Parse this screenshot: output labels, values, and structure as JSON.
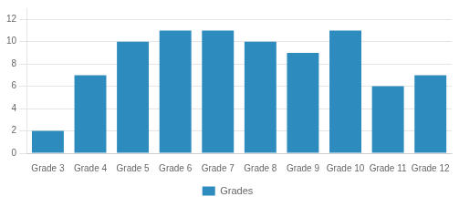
{
  "chart_data": {
    "type": "bar",
    "categories": [
      "Grade 3",
      "Grade 4",
      "Grade 5",
      "Grade 6",
      "Grade 7",
      "Grade 8",
      "Grade 9",
      "Grade 10",
      "Grade 11",
      "Grade 12"
    ],
    "series": [
      {
        "name": "Grades",
        "color": "#2E8BBE",
        "values": [
          2,
          7,
          10,
          11,
          11,
          10,
          9,
          11,
          6,
          7
        ]
      }
    ],
    "ylim": [
      0,
      13
    ],
    "yticks": [
      0,
      2,
      4,
      6,
      8,
      10,
      12
    ],
    "grid": true,
    "legend": "bottom"
  }
}
